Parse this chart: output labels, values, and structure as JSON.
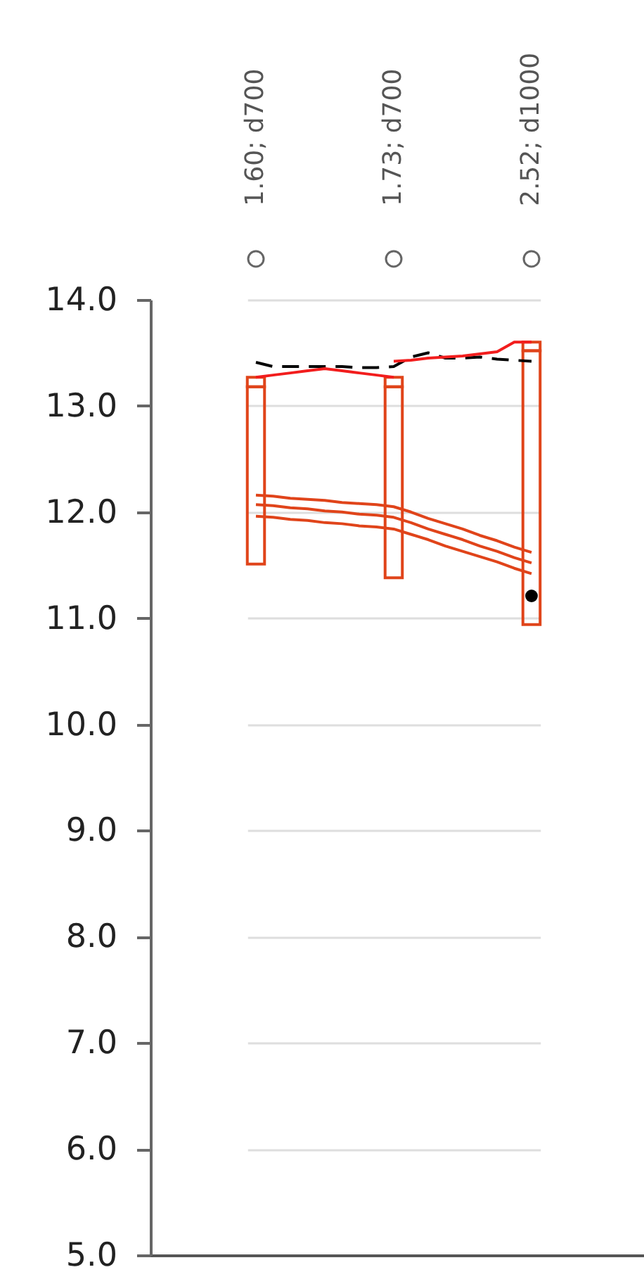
{
  "chart_data": {
    "type": "bar",
    "categories": [
      "1.60; d700",
      null,
      null,
      null,
      null,
      null,
      null,
      null,
      "1.73; d700",
      null,
      null,
      null,
      null,
      null,
      null,
      null,
      "2.52; d1000"
    ],
    "ylim": [
      5,
      14
    ],
    "yticks": [
      {
        "value": 5,
        "label": "5.0"
      },
      {
        "value": 6,
        "label": "6.0"
      },
      {
        "value": 7,
        "label": "7.0"
      },
      {
        "value": 8,
        "label": "8.0"
      },
      {
        "value": 9,
        "label": "9.0"
      },
      {
        "value": 10,
        "label": "10.0"
      },
      {
        "value": 11,
        "label": "11.0"
      },
      {
        "value": 12,
        "label": "12.0"
      },
      {
        "value": 13,
        "label": "13.0"
      },
      {
        "value": 14,
        "label": "14.0"
      }
    ],
    "grid": "y",
    "series": [
      {
        "color": "#e0441a",
        "base": [
          11.51,
          null,
          null,
          null,
          null,
          null,
          null,
          null,
          11.38,
          null,
          null,
          null,
          null,
          null,
          null,
          null,
          10.94
        ],
        "values": [
          1.67,
          null,
          null,
          null,
          null,
          null,
          null,
          null,
          1.8,
          null,
          null,
          null,
          null,
          null,
          null,
          null,
          2.58
        ]
      },
      {
        "color": "#e0441a",
        "base": [
          13.18,
          null,
          null,
          null,
          null,
          null,
          null,
          null,
          13.18,
          null,
          null,
          null,
          null,
          null,
          null,
          null,
          13.52
        ],
        "values": [
          0.09,
          null,
          null,
          null,
          null,
          null,
          null,
          null,
          0.09,
          null,
          null,
          null,
          null,
          null,
          null,
          null,
          0.08
        ]
      },
      {
        "type": "line",
        "color": "#e0441a",
        "values": [
          12.16,
          12.15,
          12.13,
          12.12,
          12.11,
          12.09,
          12.08,
          12.07,
          12.05,
          12.0,
          11.94,
          11.89,
          11.84,
          11.78,
          11.73,
          11.67,
          11.62
        ]
      },
      {
        "type": "line",
        "color": "#e0441a",
        "values": [
          12.07,
          12.06,
          12.04,
          12.03,
          12.01,
          12.0,
          11.98,
          11.97,
          11.95,
          11.9,
          11.84,
          11.79,
          11.74,
          11.68,
          11.63,
          11.57,
          11.52
        ]
      },
      {
        "type": "line",
        "color": "#e0441a",
        "values": [
          11.96,
          11.95,
          11.93,
          11.92,
          11.9,
          11.89,
          11.87,
          11.86,
          11.84,
          11.79,
          11.74,
          11.68,
          11.63,
          11.58,
          11.53,
          11.47,
          11.42
        ]
      },
      {
        "type": "line",
        "color": "#000000",
        "line_style": "dashed",
        "values": [
          13.41,
          13.37,
          13.37,
          13.37,
          13.37,
          13.37,
          13.36,
          13.36,
          13.37,
          13.46,
          13.5,
          13.45,
          13.45,
          13.46,
          13.44,
          13.43,
          13.42
        ]
      },
      {
        "type": "line",
        "color": "#f21d1d",
        "values": [
          13.27,
          13.29,
          13.31,
          13.33,
          13.35,
          13.33,
          13.31,
          13.29,
          13.27,
          null,
          null,
          null,
          null,
          null,
          null,
          null,
          null
        ]
      },
      {
        "type": "line",
        "color": "#f21d1d",
        "values": [
          null,
          null,
          null,
          null,
          null,
          null,
          null,
          null,
          13.42,
          13.43,
          13.45,
          13.46,
          13.47,
          13.49,
          13.51,
          13.6,
          13.6
        ]
      },
      {
        "type": "scatter",
        "color": "#000000",
        "marker": "circle",
        "values": [
          null,
          null,
          null,
          null,
          null,
          null,
          null,
          null,
          null,
          null,
          null,
          null,
          null,
          null,
          null,
          null,
          11.21
        ]
      }
    ]
  }
}
